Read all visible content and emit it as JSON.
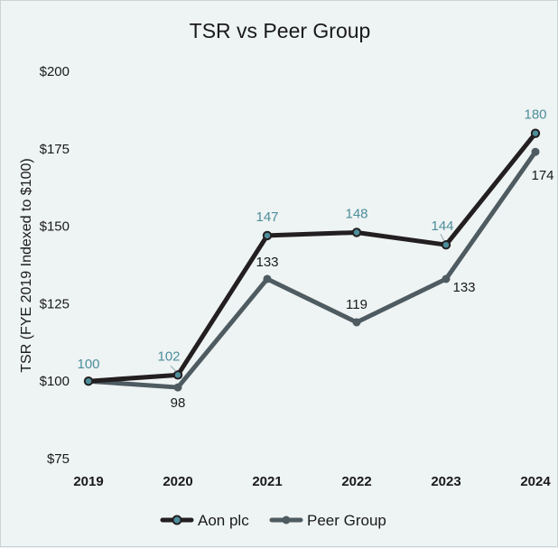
{
  "chart_data": {
    "type": "line",
    "title": "TSR vs Peer Group",
    "xlabel": "",
    "ylabel": "TSR (FYE 2019 Indexed to $100)",
    "categories": [
      "2019",
      "2020",
      "2021",
      "2022",
      "2023",
      "2024"
    ],
    "y_ticks": [
      "$75",
      "$100",
      "$125",
      "$150",
      "$175",
      "$200"
    ],
    "ylim": [
      75,
      200
    ],
    "series": [
      {
        "name": "Aon plc",
        "values": [
          100,
          102,
          147,
          148,
          144,
          180
        ],
        "labels": [
          "100",
          "102",
          "147",
          "148",
          "144",
          "180"
        ],
        "color": "#231f20",
        "label_color": "#4d8e9b",
        "marker_color": "#4d8e9b"
      },
      {
        "name": "Peer Group",
        "values": [
          100,
          98,
          133,
          119,
          133,
          174
        ],
        "labels": [
          "",
          "98",
          "133",
          "119",
          "133",
          "174"
        ],
        "color": "#4e5b61",
        "label_color": "#1a1a1a",
        "marker_color": "#4e5b61"
      }
    ],
    "grid": false,
    "legend": "bottom"
  }
}
